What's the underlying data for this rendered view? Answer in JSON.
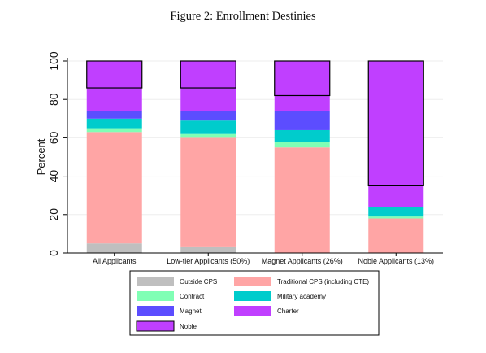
{
  "figure": {
    "title": "Figure 2: Enrollment Destinies"
  },
  "chart_data": {
    "type": "bar",
    "stacked": true,
    "title": "",
    "xlabel": "",
    "ylabel": "Percent",
    "ylim": [
      0,
      100
    ],
    "yticks": [
      0,
      20,
      40,
      60,
      80,
      100
    ],
    "grid": true,
    "legend_position": "bottom",
    "categories": [
      "All Applicants",
      "Low-tier Applicants (50%)",
      "Magnet Applicants (26%)",
      "Noble Applicants (13%)"
    ],
    "series": [
      {
        "name": "Outside CPS",
        "color": "#bfbfbf",
        "values": [
          5,
          3,
          0,
          0
        ]
      },
      {
        "name": "Traditional CPS (including CTE)",
        "color": "#ffa5a5",
        "values": [
          58,
          57,
          55,
          18
        ]
      },
      {
        "name": "Contract",
        "color": "#80ffb5",
        "values": [
          2,
          2,
          3,
          1
        ]
      },
      {
        "name": "Military academy",
        "color": "#00cccc",
        "values": [
          5,
          7,
          6,
          5
        ]
      },
      {
        "name": "Magnet",
        "color": "#5c4dff",
        "values": [
          4,
          5,
          10,
          0
        ]
      },
      {
        "name": "Charter",
        "color": "#c03fff",
        "values": [
          12,
          12,
          8,
          11
        ]
      },
      {
        "name": "Noble",
        "color": "#c03fff",
        "outlined": true,
        "values": [
          14,
          14,
          18,
          65
        ]
      }
    ]
  }
}
